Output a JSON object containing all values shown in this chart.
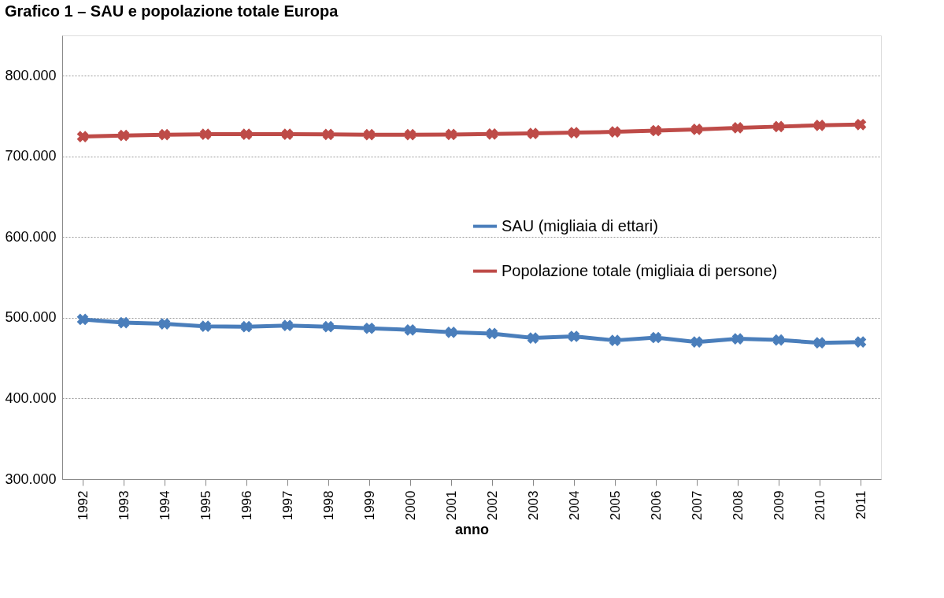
{
  "chart_data": {
    "type": "line",
    "title": "Grafico 1 – SAU e popolazione totale Europa",
    "xlabel": "anno",
    "categories": [
      "1992",
      "1993",
      "1994",
      "1995",
      "1996",
      "1997",
      "1998",
      "1999",
      "2000",
      "2001",
      "2002",
      "2003",
      "2004",
      "2005",
      "2006",
      "2007",
      "2008",
      "2009",
      "2010",
      "2011"
    ],
    "series": [
      {
        "name": "SAU (migliaia di ettari)",
        "color": "#4a7ebb",
        "values": [
          498000,
          494000,
          492500,
          489500,
          489000,
          490500,
          489000,
          487000,
          485000,
          482000,
          480500,
          475000,
          477000,
          472000,
          475500,
          470000,
          474000,
          472500,
          469000,
          470000
        ]
      },
      {
        "name": "Popolazione totale (migliaia di persone)",
        "color": "#be4b48",
        "values": [
          724600,
          726000,
          727000,
          727500,
          727500,
          727500,
          727300,
          727000,
          727000,
          727200,
          727800,
          728500,
          729500,
          730500,
          732000,
          733500,
          735500,
          737000,
          738500,
          739500
        ]
      }
    ],
    "ylim": [
      300000,
      850000
    ],
    "yticks": [
      {
        "value": 300000,
        "label": "300.000"
      },
      {
        "value": 400000,
        "label": "400.000"
      },
      {
        "value": 500000,
        "label": "500.000"
      },
      {
        "value": 600000,
        "label": "600.000"
      },
      {
        "value": 700000,
        "label": "700.000"
      },
      {
        "value": 800000,
        "label": "800.000"
      }
    ],
    "grid": "y",
    "legend": "right",
    "marker": "cross",
    "line_style": "solid"
  }
}
